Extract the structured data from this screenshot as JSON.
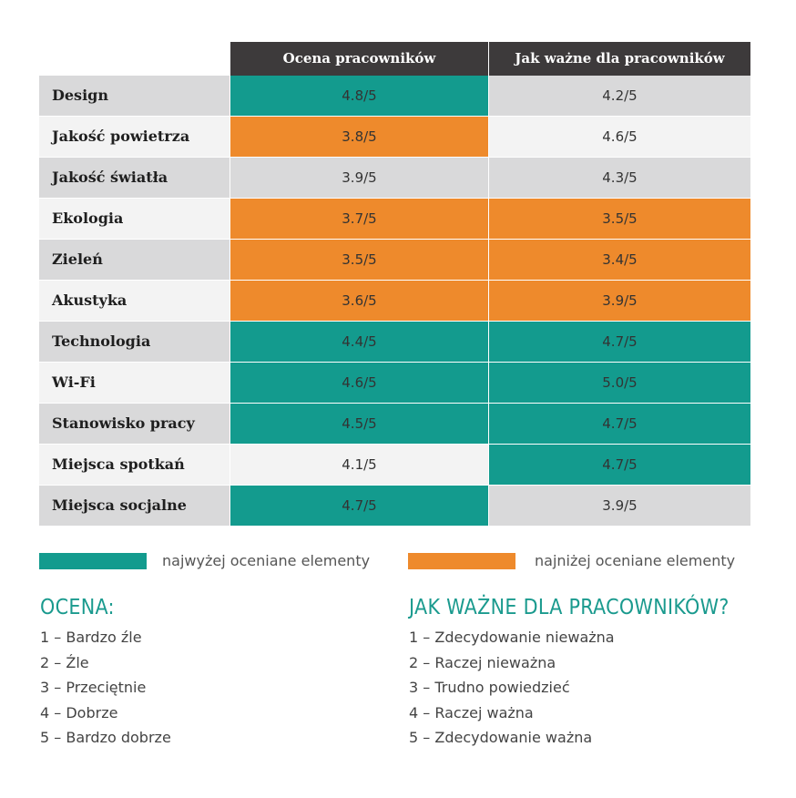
{
  "colors": {
    "header_bg": "#3d3a3b",
    "highest": "#139b8e",
    "lowest": "#ee8a2c",
    "row_dark": "#d9d9da",
    "row_light": "#f3f3f3",
    "scale_title": "#1a9a8e"
  },
  "chart_data": {
    "type": "table",
    "columns": [
      "Ocena pracowników",
      "Jak ważne dla pracowników"
    ],
    "rows": [
      {
        "category": "Design",
        "values": [
          "4.8/5",
          "4.2/5"
        ],
        "highlight": [
          "high",
          "none"
        ]
      },
      {
        "category": "Jakość powietrza",
        "values": [
          "3.8/5",
          "4.6/5"
        ],
        "highlight": [
          "low",
          "none"
        ]
      },
      {
        "category": "Jakość światła",
        "values": [
          "3.9/5",
          "4.3/5"
        ],
        "highlight": [
          "none",
          "none"
        ]
      },
      {
        "category": "Ekologia",
        "values": [
          "3.7/5",
          "3.5/5"
        ],
        "highlight": [
          "low",
          "low"
        ]
      },
      {
        "category": "Zieleń",
        "values": [
          "3.5/5",
          "3.4/5"
        ],
        "highlight": [
          "low",
          "low"
        ]
      },
      {
        "category": "Akustyka",
        "values": [
          "3.6/5",
          "3.9/5"
        ],
        "highlight": [
          "low",
          "low"
        ]
      },
      {
        "category": "Technologia",
        "values": [
          "4.4/5",
          "4.7/5"
        ],
        "highlight": [
          "high",
          "high"
        ]
      },
      {
        "category": "Wi-Fi",
        "values": [
          "4.6/5",
          "5.0/5"
        ],
        "highlight": [
          "high",
          "high"
        ]
      },
      {
        "category": "Stanowisko pracy",
        "values": [
          "4.5/5",
          "4.7/5"
        ],
        "highlight": [
          "high",
          "high"
        ]
      },
      {
        "category": "Miejsca spotkań",
        "values": [
          "4.1/5",
          "4.7/5"
        ],
        "highlight": [
          "none",
          "high"
        ]
      },
      {
        "category": "Miejsca socjalne",
        "values": [
          "4.7/5",
          "3.9/5"
        ],
        "highlight": [
          "high",
          "none"
        ]
      }
    ]
  },
  "legend": {
    "highest_label": "najwyżej oceniane elementy",
    "lowest_label": "najniżej oceniane elementy"
  },
  "scales": {
    "rating": {
      "title": "OCENA:",
      "items": [
        "1 – Bardzo źle",
        "2 – Źle",
        "3 – Przeciętnie",
        "4 – Dobrze",
        "5 – Bardzo dobrze"
      ]
    },
    "importance": {
      "title": "JAK WAŻNE DLA PRACOWNIKÓW?",
      "items": [
        "1 – Zdecydowanie nieważna",
        "2 – Raczej nieważna",
        "3 – Trudno powiedzieć",
        "4 – Raczej ważna",
        "5 – Zdecydowanie ważna"
      ]
    }
  }
}
